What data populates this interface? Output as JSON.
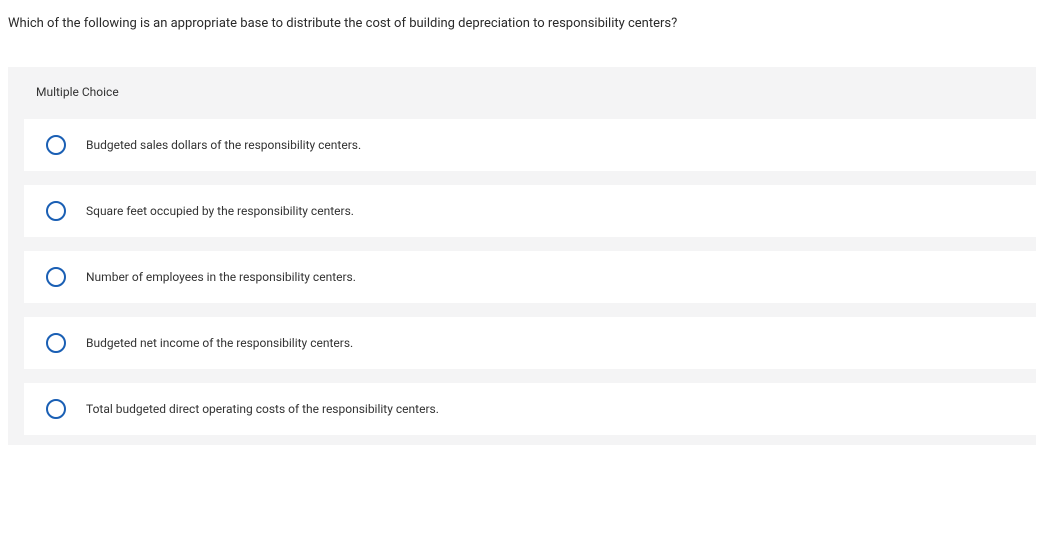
{
  "question": {
    "text": "Which of the following is an appropriate base to distribute the cost of building depreciation to responsibility centers?"
  },
  "section": {
    "label": "Multiple Choice"
  },
  "options": [
    {
      "label": "Budgeted sales dollars of the responsibility centers."
    },
    {
      "label": "Square feet occupied by the responsibility centers."
    },
    {
      "label": "Number of employees in the responsibility centers."
    },
    {
      "label": "Budgeted net income of the responsibility centers."
    },
    {
      "label": "Total budgeted direct operating costs of the responsibility centers."
    }
  ],
  "colors": {
    "radio_border": "#1a5fb4",
    "background_panel": "#f4f4f5",
    "option_background": "#ffffff",
    "text_color": "#333333"
  }
}
